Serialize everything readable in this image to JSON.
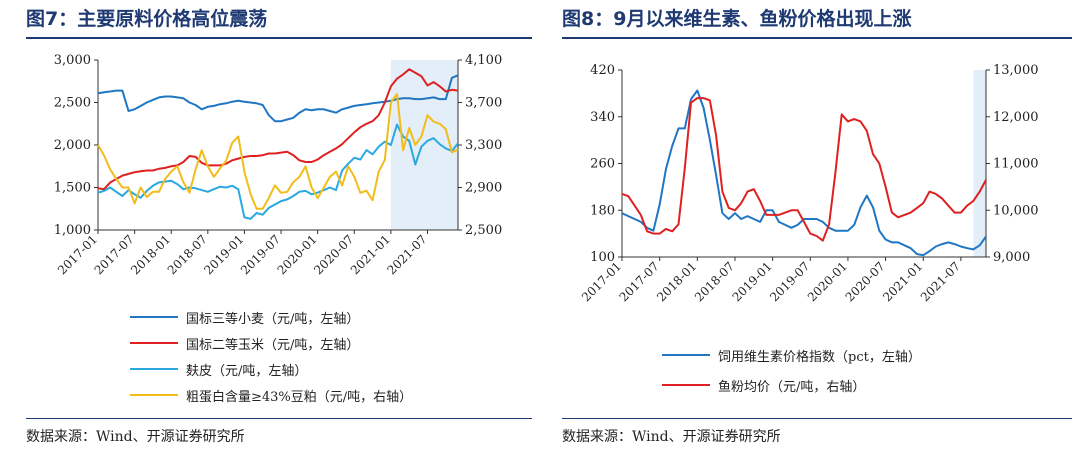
{
  "left": {
    "title": "图7：主要原料价格高位震荡",
    "source": "数据来源：Wind、开源证券研究所",
    "chart_data": {
      "type": "line",
      "x_tick_labels": [
        "2017-01",
        "2017-07",
        "2018-01",
        "2018-07",
        "2019-01",
        "2019-07",
        "2020-01",
        "2020-07",
        "2021-01",
        "2021-07"
      ],
      "x_range": [
        0,
        59
      ],
      "highlight_x": [
        48,
        59
      ],
      "y_left": {
        "range": [
          1000,
          3000
        ],
        "ticks": [
          "1,000",
          "1,500",
          "2,000",
          "2,500",
          "3,000"
        ]
      },
      "y_right": {
        "range": [
          2500,
          4100
        ],
        "ticks": [
          "2,500",
          "2,900",
          "3,300",
          "3,700",
          "4,100"
        ]
      },
      "series": [
        {
          "name": "国标三等小麦（元/吨，左轴）",
          "axis": "left",
          "color": "#1f77c4",
          "values": [
            2610,
            2620,
            2630,
            2640,
            2640,
            2400,
            2420,
            2460,
            2500,
            2530,
            2560,
            2570,
            2570,
            2560,
            2550,
            2500,
            2470,
            2420,
            2450,
            2460,
            2480,
            2490,
            2510,
            2520,
            2510,
            2500,
            2490,
            2470,
            2350,
            2280,
            2280,
            2300,
            2320,
            2380,
            2420,
            2410,
            2420,
            2420,
            2400,
            2380,
            2420,
            2440,
            2460,
            2470,
            2480,
            2490,
            2500,
            2510,
            2520,
            2540,
            2550,
            2550,
            2540,
            2540,
            2550,
            2560,
            2540,
            2540,
            2790,
            2820
          ]
        },
        {
          "name": "国标二等玉米（元/吨，左轴）",
          "axis": "left",
          "color": "#e02020",
          "values": [
            1490,
            1480,
            1560,
            1600,
            1640,
            1660,
            1680,
            1690,
            1700,
            1700,
            1720,
            1730,
            1750,
            1760,
            1800,
            1870,
            1860,
            1790,
            1760,
            1760,
            1760,
            1780,
            1820,
            1840,
            1860,
            1870,
            1870,
            1880,
            1900,
            1900,
            1910,
            1920,
            1880,
            1820,
            1800,
            1800,
            1830,
            1880,
            1920,
            1960,
            2010,
            2080,
            2150,
            2210,
            2250,
            2280,
            2350,
            2500,
            2690,
            2780,
            2830,
            2890,
            2850,
            2810,
            2700,
            2740,
            2690,
            2630,
            2650,
            2640
          ]
        },
        {
          "name": "麸皮（元/吨，左轴）",
          "axis": "left",
          "color": "#29a9e0",
          "values": [
            1440,
            1460,
            1500,
            1450,
            1400,
            1470,
            1420,
            1380,
            1460,
            1520,
            1560,
            1570,
            1580,
            1540,
            1480,
            1500,
            1490,
            1470,
            1450,
            1480,
            1510,
            1500,
            1520,
            1480,
            1150,
            1130,
            1200,
            1180,
            1260,
            1300,
            1340,
            1360,
            1400,
            1450,
            1460,
            1420,
            1440,
            1470,
            1500,
            1470,
            1700,
            1780,
            1850,
            1830,
            1940,
            1890,
            1980,
            2040,
            2000,
            2240,
            2100,
            2050,
            1770,
            1980,
            2050,
            2080,
            2010,
            1960,
            1930,
            2020
          ]
        },
        {
          "name": "粗蛋白含量≥43%豆粕（元/吨，右轴）",
          "axis": "right",
          "color": "#f2bc1b",
          "values": [
            3300,
            3200,
            3070,
            2980,
            2900,
            2900,
            2750,
            2900,
            2810,
            2860,
            2860,
            2980,
            3050,
            3100,
            2950,
            2850,
            3070,
            3250,
            3100,
            3000,
            3080,
            3150,
            3320,
            3380,
            3050,
            2840,
            2700,
            2700,
            2800,
            2920,
            2850,
            2860,
            2950,
            3000,
            3100,
            2900,
            2800,
            2900,
            3000,
            3050,
            2920,
            3100,
            3000,
            2850,
            2870,
            2780,
            3050,
            3160,
            3700,
            3780,
            3250,
            3460,
            3300,
            3380,
            3580,
            3520,
            3500,
            3450,
            3230,
            3260
          ]
        }
      ]
    }
  },
  "right": {
    "title": "图8：9月以来维生素、鱼粉价格出现上涨",
    "source": "数据来源：Wind、开源证券研究所",
    "chart_data": {
      "type": "line",
      "x_tick_labels": [
        "2017-01",
        "2017-07",
        "2018-01",
        "2018-07",
        "2019-01",
        "2019-07",
        "2020-01",
        "2020-07",
        "2021-01",
        "2021-07"
      ],
      "x_range": [
        0,
        58
      ],
      "highlight_x": [
        56,
        58
      ],
      "y_left": {
        "range": [
          100,
          420
        ],
        "ticks": [
          "100",
          "180",
          "260",
          "340",
          "420"
        ]
      },
      "y_right": {
        "range": [
          9000,
          13000
        ],
        "ticks": [
          "9,000",
          "10,000",
          "11,000",
          "12,000",
          "13,000"
        ]
      },
      "series": [
        {
          "name": "饲用维生素价格指数（pct，左轴）",
          "axis": "left",
          "color": "#1f77c4",
          "values": [
            175,
            170,
            165,
            160,
            150,
            145,
            190,
            250,
            290,
            320,
            320,
            370,
            385,
            355,
            300,
            240,
            175,
            165,
            175,
            165,
            170,
            165,
            160,
            180,
            180,
            160,
            155,
            150,
            155,
            165,
            165,
            165,
            160,
            150,
            145,
            145,
            145,
            155,
            185,
            205,
            185,
            145,
            130,
            125,
            125,
            120,
            115,
            105,
            103,
            110,
            118,
            122,
            125,
            122,
            118,
            115,
            113,
            120,
            135
          ]
        },
        {
          "name": "鱼粉均价（元/吨，右轴）",
          "axis": "right",
          "color": "#e02020",
          "values": [
            10350,
            10300,
            10100,
            9900,
            9550,
            9500,
            9500,
            9600,
            9550,
            9700,
            10900,
            12300,
            12400,
            12400,
            12350,
            11600,
            10400,
            10050,
            10000,
            10150,
            10400,
            10450,
            10200,
            9900,
            9900,
            9900,
            9950,
            10000,
            10000,
            9750,
            9500,
            9450,
            9350,
            9700,
            10800,
            12050,
            11900,
            11950,
            11900,
            11700,
            11200,
            11000,
            10500,
            9950,
            9850,
            9900,
            9950,
            10050,
            10150,
            10400,
            10350,
            10250,
            10100,
            9950,
            9950,
            10100,
            10200,
            10400,
            10650
          ]
        }
      ]
    }
  }
}
